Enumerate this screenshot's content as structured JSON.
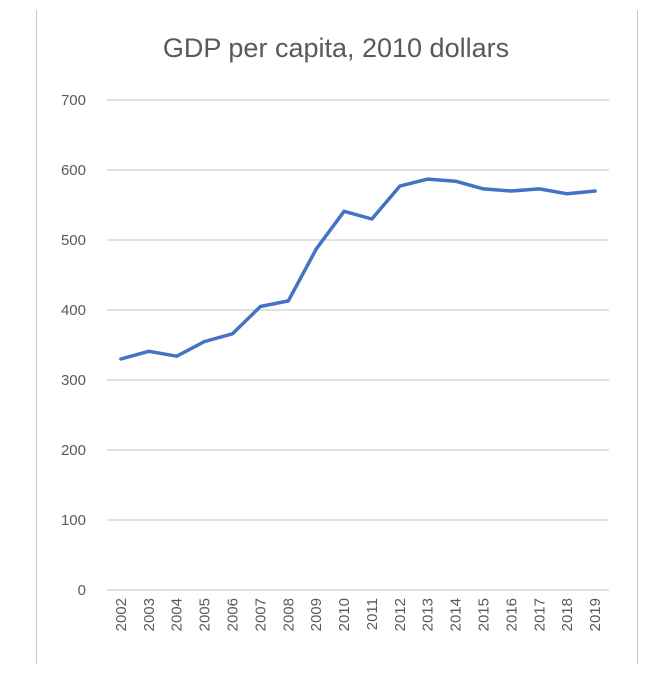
{
  "chart_data": {
    "type": "line",
    "title": "GDP per capita, 2010 dollars",
    "xlabel": "",
    "ylabel": "",
    "x": [
      "2002",
      "2003",
      "2004",
      "2005",
      "2006",
      "2007",
      "2008",
      "2009",
      "2010",
      "2011",
      "2012",
      "2013",
      "2014",
      "2015",
      "2016",
      "2017",
      "2018",
      "2019"
    ],
    "series": [
      {
        "values": [
          330,
          341,
          334,
          355,
          366,
          405,
          413,
          487,
          541,
          530,
          577,
          587,
          584,
          573,
          570,
          573,
          566,
          570
        ]
      }
    ],
    "ylim": [
      0,
      700
    ],
    "yticks": [
      0,
      100,
      200,
      300,
      400,
      500,
      600,
      700
    ],
    "grid": true,
    "legend": "none",
    "line_color": "#4472c4",
    "grid_color": "#d9d9d9",
    "text_color": "#595959"
  }
}
